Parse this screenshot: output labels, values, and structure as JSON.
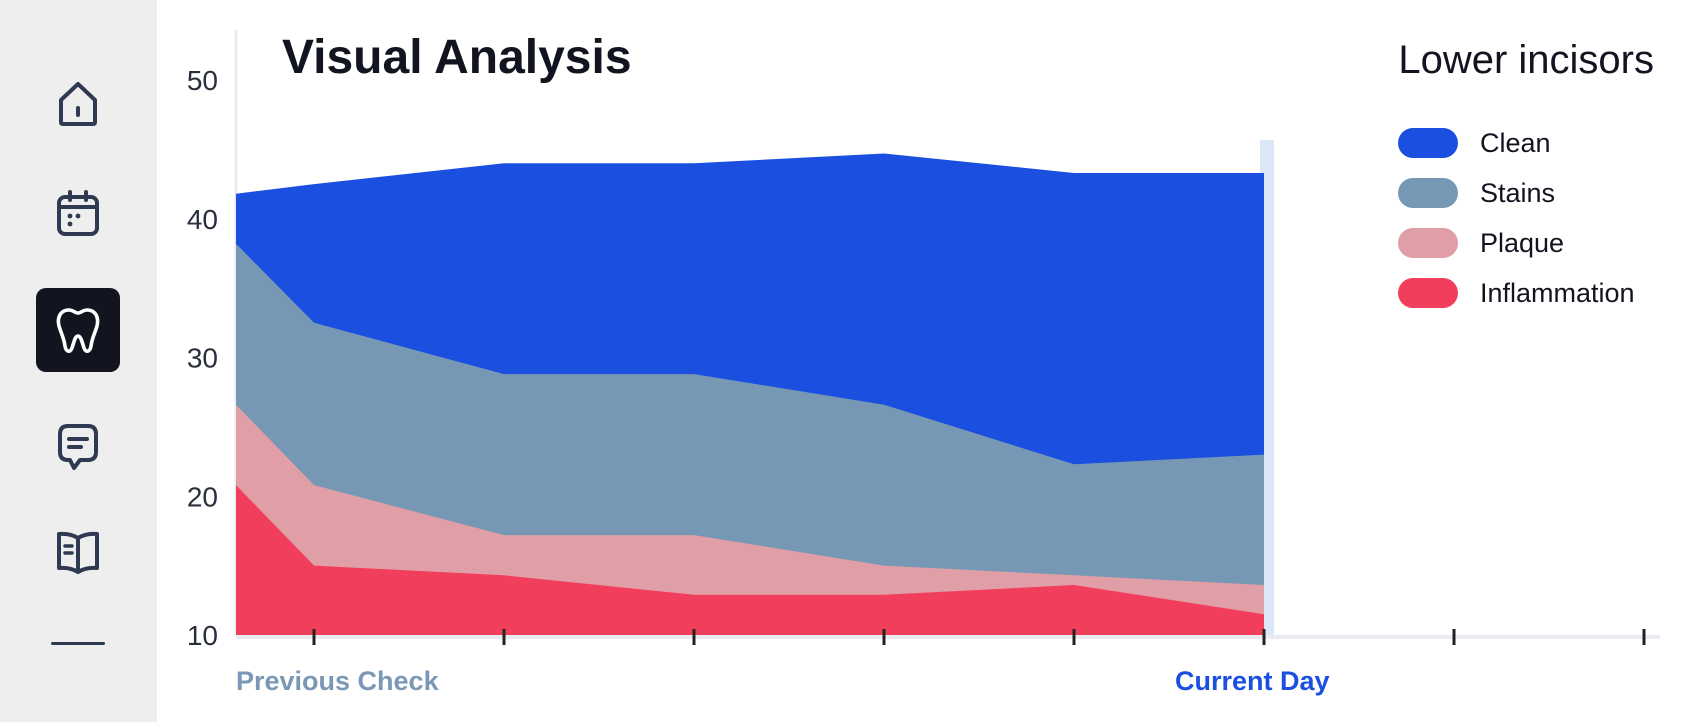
{
  "sidebar": {
    "items": [
      {
        "name": "home",
        "active": false
      },
      {
        "name": "calendar",
        "active": false
      },
      {
        "name": "tooth",
        "active": true
      },
      {
        "name": "messages",
        "active": false
      },
      {
        "name": "book",
        "active": false
      }
    ]
  },
  "header": {
    "title": "Visual Analysis",
    "subtitle": "Lower incisors"
  },
  "colors": {
    "clean": "#1a4fe0",
    "stains": "#7798b4",
    "plaque": "#e09ea7",
    "inflammation": "#f13e5c",
    "axis": "#e8ebf0",
    "tick": "#222222",
    "current_marker": "#dbe8f8",
    "previous_label": "#7a98b6",
    "current_label": "#1a4fe0",
    "sidebar_icon": "#2f3a52"
  },
  "chart_data": {
    "type": "area",
    "stacked": false,
    "x": [
      0,
      0.4,
      1.4,
      2.4,
      3.4,
      4.4,
      5.4
    ],
    "ylim": [
      10,
      50
    ],
    "y_ticks": [
      "50",
      "40",
      "30",
      "20",
      "10"
    ],
    "x_ticks_count": 8,
    "series": [
      {
        "name": "Clean",
        "color": "#1a4fe0",
        "values": [
          41.8,
          42.5,
          44.0,
          44.0,
          44.7,
          43.3,
          43.3
        ]
      },
      {
        "name": "Stains",
        "color": "#7798b4",
        "values": [
          38.2,
          32.5,
          28.8,
          28.8,
          26.6,
          22.3,
          23.0
        ]
      },
      {
        "name": "Plaque",
        "color": "#e09ea7",
        "values": [
          26.6,
          20.8,
          17.2,
          17.2,
          15.0,
          14.3,
          13.6
        ]
      },
      {
        "name": "Inflammation",
        "color": "#f13e5c",
        "values": [
          20.8,
          15.0,
          14.3,
          12.9,
          12.9,
          13.6,
          11.5
        ]
      }
    ],
    "markers": {
      "previous": "Previous Check",
      "current": "Current Day"
    },
    "legend_position": "top-right",
    "grid": false
  }
}
